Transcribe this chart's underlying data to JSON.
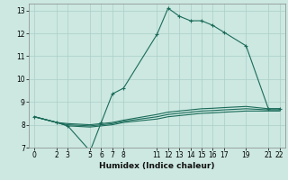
{
  "xlabel": "Humidex (Indice chaleur)",
  "bg_color": "#cce8e0",
  "grid_color": "#aacfc8",
  "line_color": "#1a6b5a",
  "xlim": [
    -0.5,
    22.5
  ],
  "ylim": [
    7,
    13.3
  ],
  "xticks": [
    0,
    2,
    3,
    5,
    6,
    7,
    8,
    11,
    12,
    13,
    14,
    15,
    16,
    17,
    19,
    21,
    22
  ],
  "yticks": [
    7,
    8,
    9,
    10,
    11,
    12,
    13
  ],
  "series": [
    {
      "x": [
        0,
        2,
        3,
        5,
        6,
        7,
        8,
        11,
        12,
        13,
        14,
        15,
        16,
        17,
        19,
        21,
        22
      ],
      "y": [
        8.35,
        8.1,
        7.95,
        6.85,
        8.1,
        9.35,
        9.6,
        11.95,
        13.1,
        12.75,
        12.55,
        12.55,
        12.35,
        12.05,
        11.45,
        8.7,
        8.7
      ],
      "marker": true
    },
    {
      "x": [
        0,
        2,
        3,
        5,
        6,
        7,
        8,
        11,
        12,
        13,
        14,
        15,
        16,
        17,
        19,
        21,
        22
      ],
      "y": [
        8.35,
        8.1,
        8.05,
        8.0,
        8.05,
        8.1,
        8.2,
        8.45,
        8.55,
        8.6,
        8.65,
        8.7,
        8.72,
        8.75,
        8.8,
        8.7,
        8.7
      ],
      "marker": false
    },
    {
      "x": [
        0,
        2,
        3,
        5,
        6,
        7,
        8,
        11,
        12,
        13,
        14,
        15,
        16,
        17,
        19,
        21,
        22
      ],
      "y": [
        8.35,
        8.1,
        8.0,
        7.95,
        8.0,
        8.05,
        8.15,
        8.35,
        8.45,
        8.5,
        8.55,
        8.6,
        8.62,
        8.65,
        8.7,
        8.65,
        8.65
      ],
      "marker": false
    },
    {
      "x": [
        0,
        2,
        3,
        5,
        6,
        7,
        8,
        11,
        12,
        13,
        14,
        15,
        16,
        17,
        19,
        21,
        22
      ],
      "y": [
        8.35,
        8.1,
        7.95,
        7.9,
        7.95,
        8.0,
        8.1,
        8.25,
        8.35,
        8.4,
        8.45,
        8.5,
        8.52,
        8.55,
        8.6,
        8.6,
        8.6
      ],
      "marker": false
    }
  ]
}
